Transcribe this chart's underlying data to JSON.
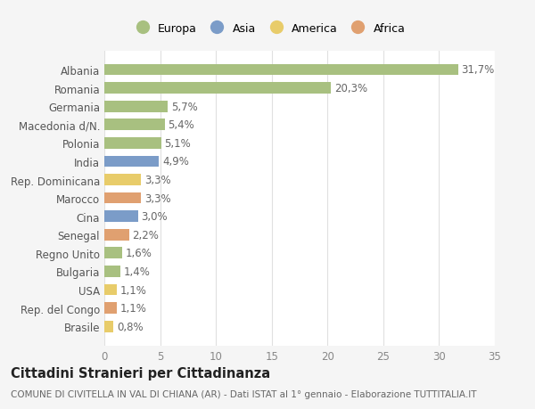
{
  "categories": [
    "Albania",
    "Romania",
    "Germania",
    "Macedonia d/N.",
    "Polonia",
    "India",
    "Rep. Dominicana",
    "Marocco",
    "Cina",
    "Senegal",
    "Regno Unito",
    "Bulgaria",
    "USA",
    "Rep. del Congo",
    "Brasile"
  ],
  "values": [
    31.7,
    20.3,
    5.7,
    5.4,
    5.1,
    4.9,
    3.3,
    3.3,
    3.0,
    2.2,
    1.6,
    1.4,
    1.1,
    1.1,
    0.8
  ],
  "labels": [
    "31,7%",
    "20,3%",
    "5,7%",
    "5,4%",
    "5,1%",
    "4,9%",
    "3,3%",
    "3,3%",
    "3,0%",
    "2,2%",
    "1,6%",
    "1,4%",
    "1,1%",
    "1,1%",
    "0,8%"
  ],
  "continents": [
    "Europa",
    "Europa",
    "Europa",
    "Europa",
    "Europa",
    "Asia",
    "America",
    "Africa",
    "Asia",
    "Africa",
    "Europa",
    "Europa",
    "America",
    "Africa",
    "America"
  ],
  "colors": {
    "Europa": "#a8c080",
    "Asia": "#7b9cc8",
    "America": "#e8cc6a",
    "Africa": "#e0a070"
  },
  "title": "Cittadini Stranieri per Cittadinanza",
  "subtitle": "COMUNE DI CIVITELLA IN VAL DI CHIANA (AR) - Dati ISTAT al 1° gennaio - Elaborazione TUTTITALIA.IT",
  "xlim": [
    0,
    35
  ],
  "xticks": [
    0,
    5,
    10,
    15,
    20,
    25,
    30,
    35
  ],
  "background_color": "#f5f5f5",
  "plot_background_color": "#ffffff",
  "grid_color": "#e0e0e0",
  "bar_height": 0.62,
  "label_fontsize": 8.5,
  "tick_fontsize": 8.5,
  "title_fontsize": 10.5,
  "subtitle_fontsize": 7.5
}
